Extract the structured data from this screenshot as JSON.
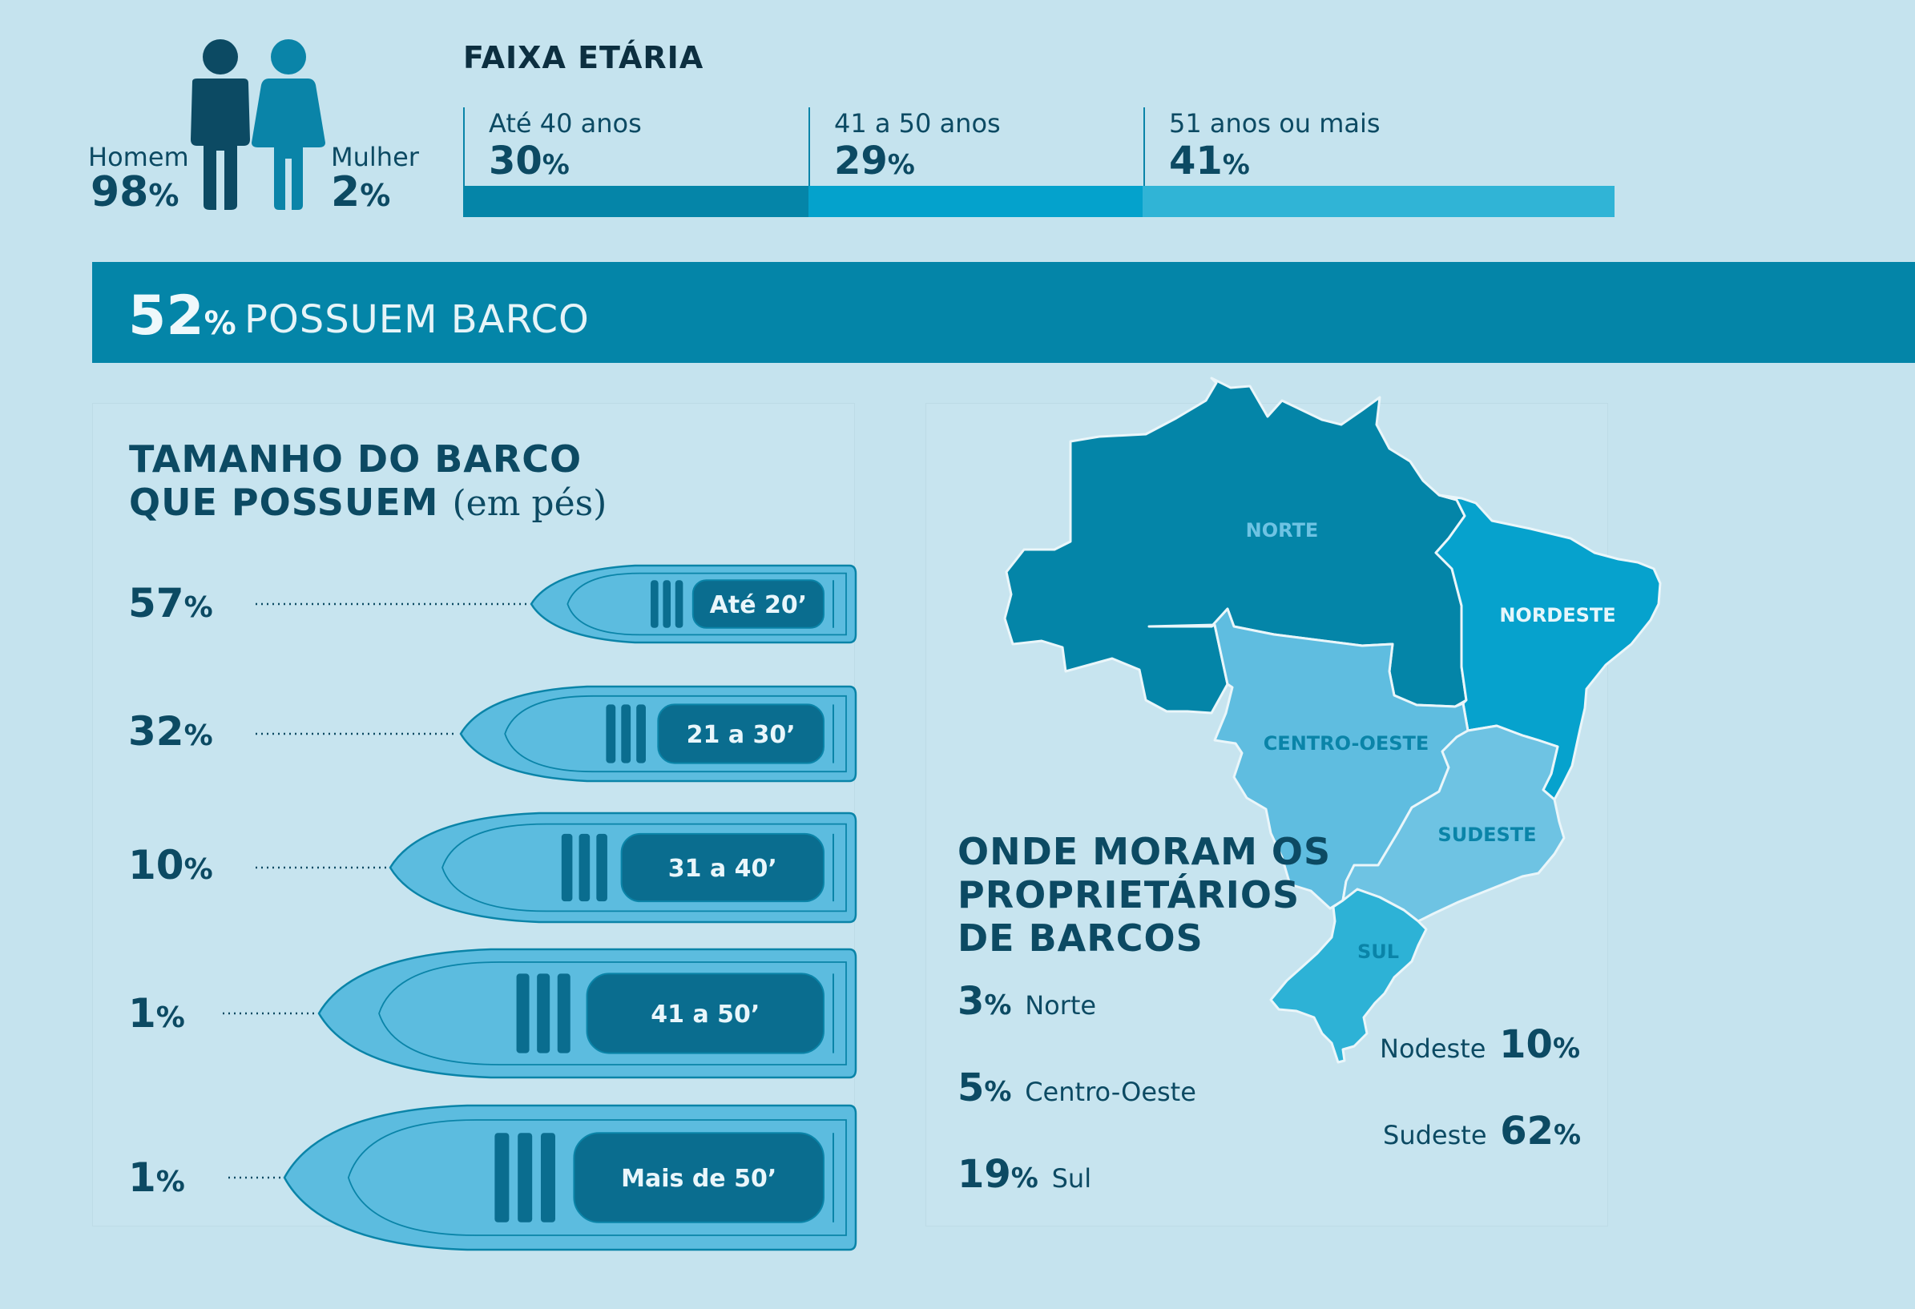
{
  "gender": {
    "male": {
      "label": "Homem",
      "value": "98",
      "unit": "%"
    },
    "female": {
      "label": "Mulher",
      "value": "2",
      "unit": "%"
    },
    "colors": {
      "male": "#0c4a63",
      "female": "#0a84a8"
    }
  },
  "age": {
    "title": "FAIXA ETÁRIA",
    "groups": [
      {
        "label": "Até 40 anos",
        "value": "30",
        "unit": "%",
        "color": "#0585a8"
      },
      {
        "label": "41 a 50 anos",
        "value": "29",
        "unit": "%",
        "color": "#04a2cc"
      },
      {
        "label": "51 anos ou mais",
        "value": "41",
        "unit": "%",
        "color": "#30b4d6"
      }
    ]
  },
  "banner": {
    "value": "52",
    "unit": "%",
    "text": "POSSUEM BARCO"
  },
  "boats": {
    "title_line1": "TAMANHO DO BARCO",
    "title_line2": "QUE POSSUEM",
    "title_suffix": "(em pés)",
    "items": [
      {
        "value": "57",
        "unit": "%",
        "size": "Até 20’"
      },
      {
        "value": "32",
        "unit": "%",
        "size": "21 a 30’"
      },
      {
        "value": "10",
        "unit": "%",
        "size": "31 a 40’"
      },
      {
        "value": "1",
        "unit": "%",
        "size": "41 a 50’"
      },
      {
        "value": "1",
        "unit": "%",
        "size": "Mais de 50’"
      }
    ],
    "colors": {
      "hull": "#5cbcdf",
      "outline": "#0a84a8",
      "cabin": "#0a6d8f"
    }
  },
  "regions": {
    "title_line1": "ONDE MORAM OS",
    "title_line2": "PROPRIETÁRIOS",
    "title_line3": "DE BARCOS",
    "map_labels": {
      "norte": "NORTE",
      "nordeste": "NORDESTE",
      "centro_oeste": "CENTRO-OESTE",
      "sudeste": "SUDESTE",
      "sul": "SUL"
    },
    "items": [
      {
        "value": "3",
        "unit": "%",
        "name": "Norte"
      },
      {
        "value": "5",
        "unit": "%",
        "name": "Centro-Oeste"
      },
      {
        "value": "19",
        "unit": "%",
        "name": "Sul"
      },
      {
        "value": "10",
        "unit": "%",
        "name": "Nodeste"
      },
      {
        "value": "62",
        "unit": "%",
        "name": "Sudeste"
      }
    ],
    "colors": {
      "norte": "#0485a8",
      "nordeste": "#06a2cd",
      "centro_oeste": "#5fbde0",
      "sudeste": "#6ec3e3",
      "sul": "#2db2d6"
    }
  },
  "chart_data": [
    {
      "type": "pie",
      "title": "",
      "categories": [
        "Homem",
        "Mulher"
      ],
      "values": [
        98,
        2
      ]
    },
    {
      "type": "bar",
      "title": "FAIXA ETÁRIA",
      "categories": [
        "Até 40 anos",
        "41 a 50 anos",
        "51 anos ou mais"
      ],
      "values": [
        30,
        29,
        41
      ],
      "orientation": "stacked-horizontal"
    },
    {
      "type": "bar",
      "title": "TAMANHO DO BARCO QUE POSSUEM (em pés)",
      "categories": [
        "Até 20’",
        "21 a 30’",
        "31 a 40’",
        "41 a 50’",
        "Mais de 50’"
      ],
      "values": [
        57,
        32,
        10,
        1,
        1
      ]
    },
    {
      "type": "table",
      "title": "ONDE MORAM OS PROPRIETÁRIOS DE BARCOS",
      "categories": [
        "Norte",
        "Centro-Oeste",
        "Sul",
        "Nodeste",
        "Sudeste"
      ],
      "values": [
        3,
        5,
        19,
        10,
        62
      ]
    }
  ]
}
